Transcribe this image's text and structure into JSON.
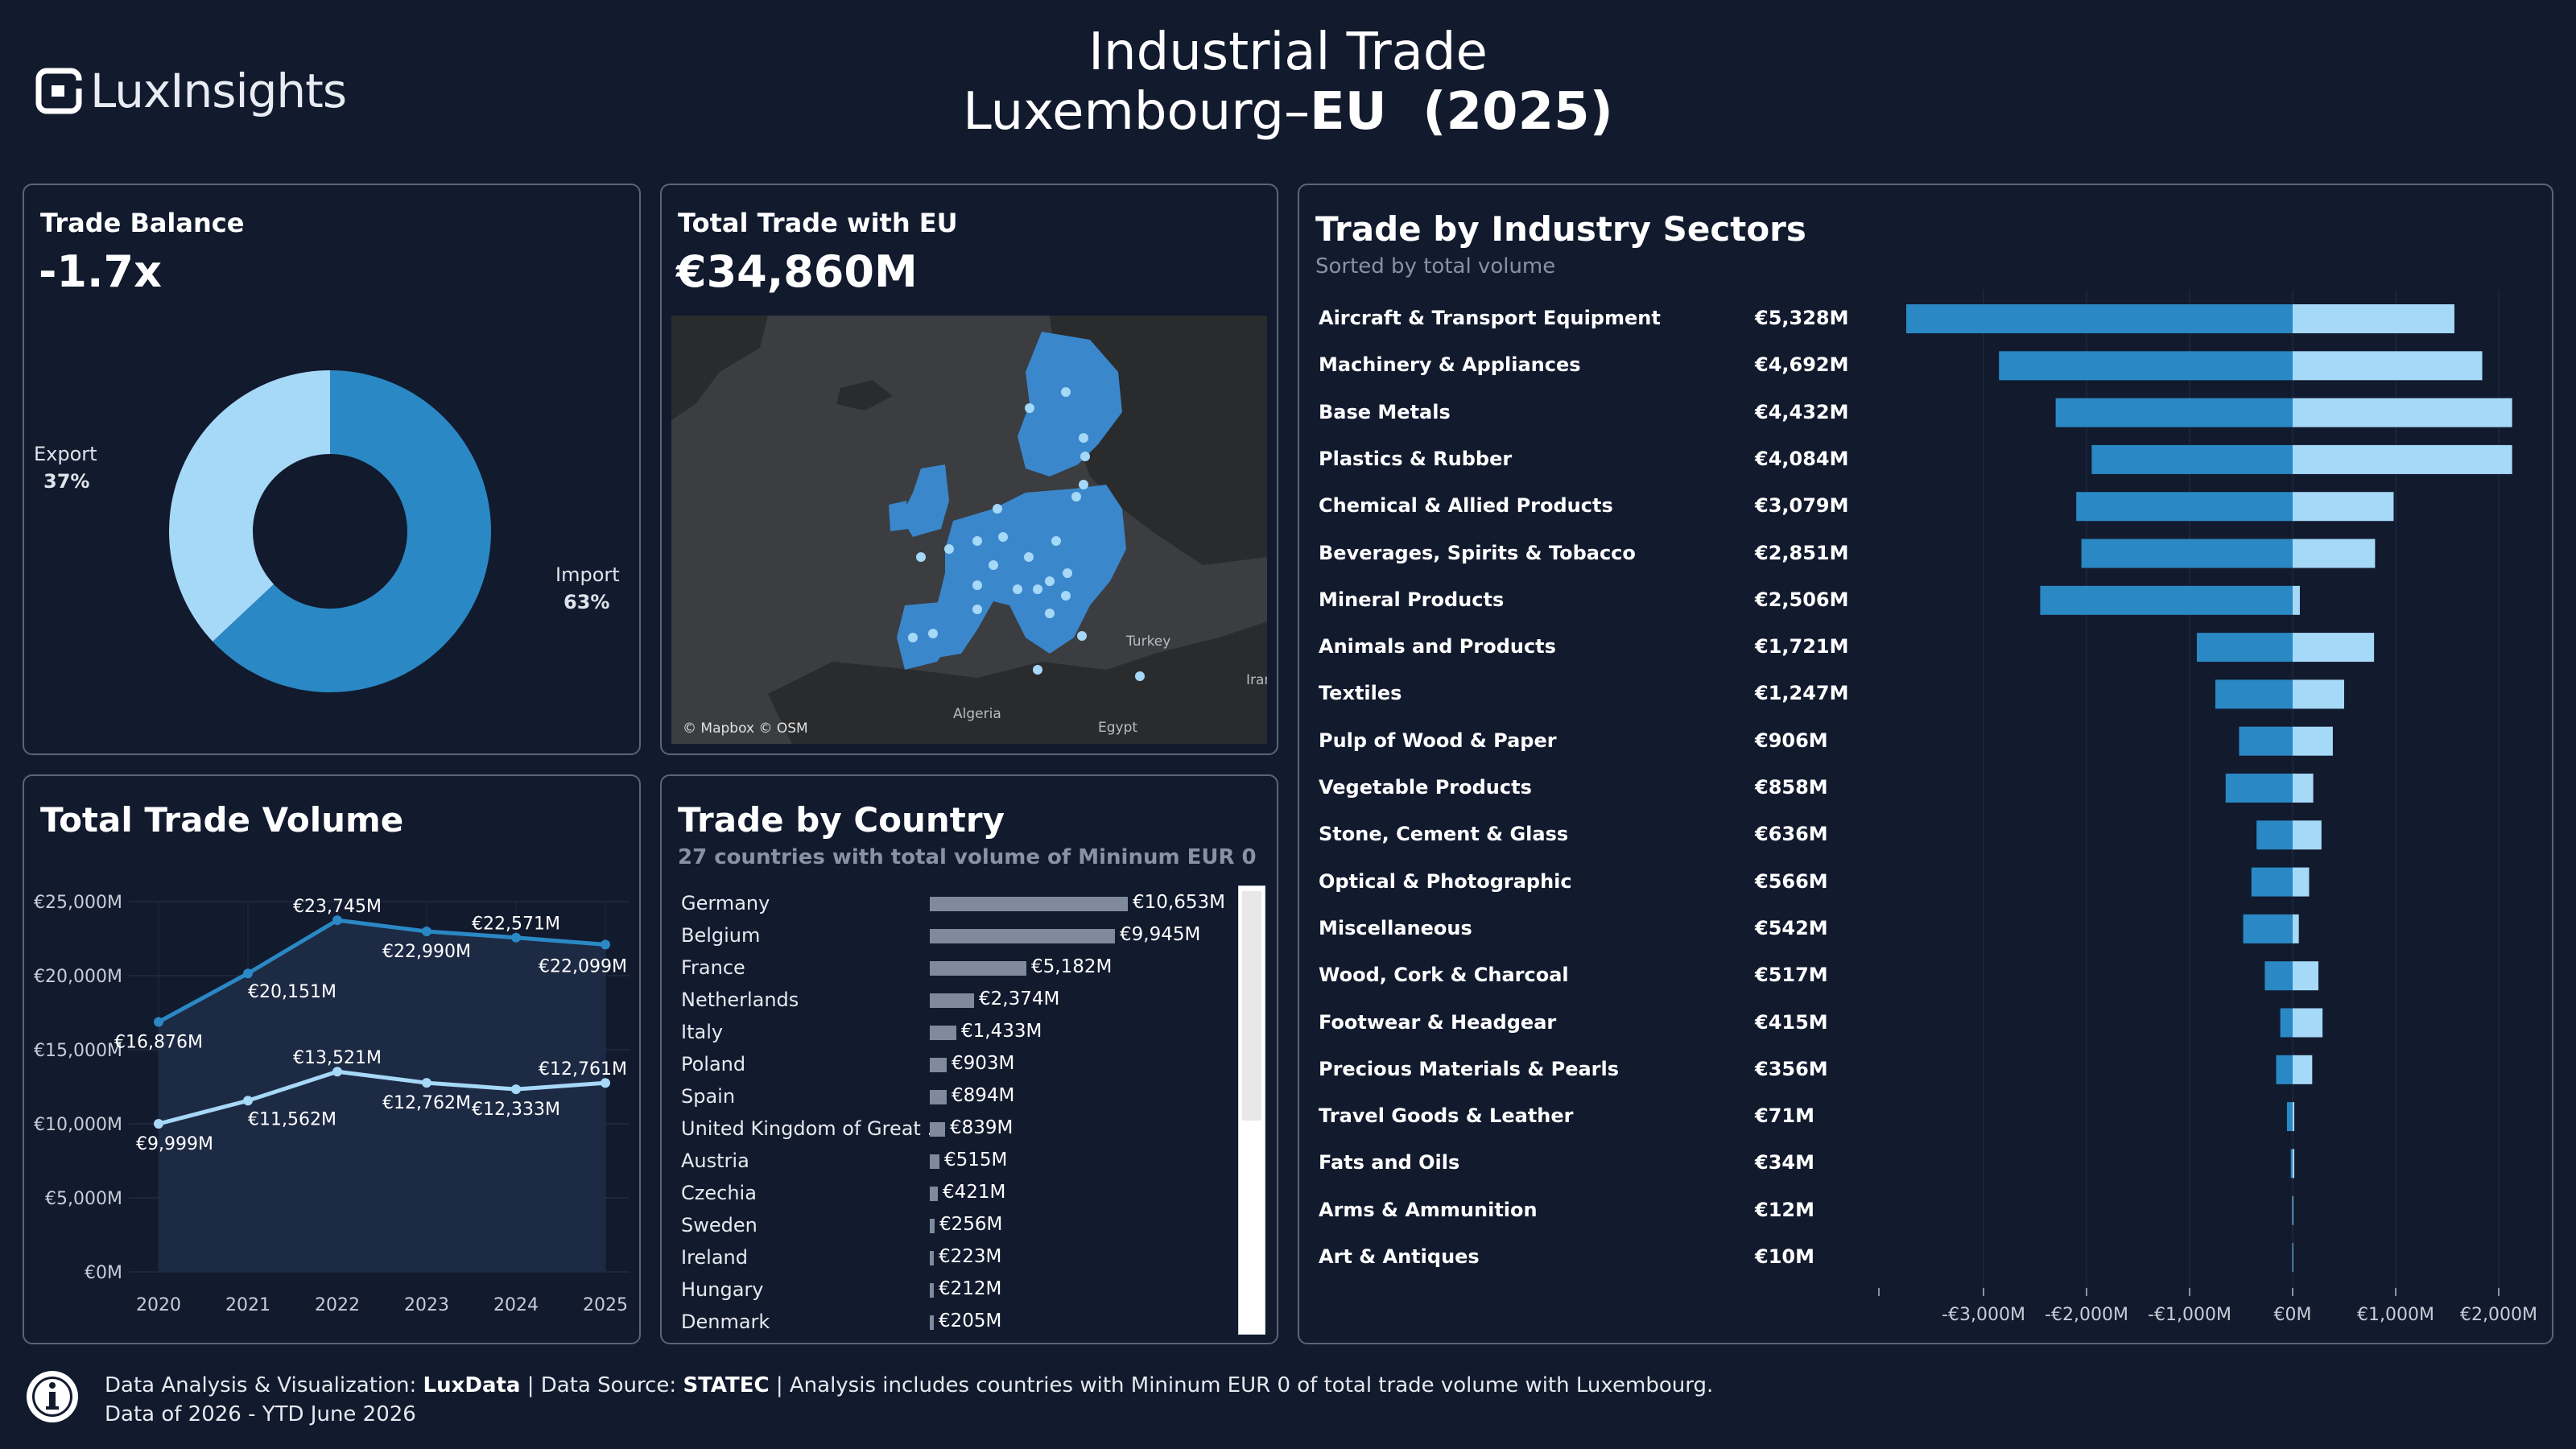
{
  "header": {
    "logo_text": "LuxInsights",
    "title_line1": "Industrial Trade",
    "title_line2_prefix": "Luxembourg–",
    "title_line2_bold": "EU  (2025)"
  },
  "trade_balance": {
    "title": "Trade Balance",
    "value": "-1.7x",
    "export_label": "Export",
    "export_pct": "37%",
    "import_label": "Import",
    "import_pct": "63%",
    "export_share": 0.37,
    "import_share": 0.63,
    "colors": {
      "export": "#a6d8f7",
      "import": "#2a88c4"
    }
  },
  "total_trade": {
    "title": "Total Trade with EU",
    "value": "€34,860M",
    "map_labels": {
      "turkey": "Turkey",
      "algeria": "Algeria",
      "egypt": "Egypt",
      "iran": "Iran"
    },
    "attribution": "© Mapbox © OSM"
  },
  "trade_volume": {
    "title": "Total Trade Volume",
    "y_ticks": [
      "€25,000M",
      "€20,000M",
      "€15,000M",
      "€10,000M",
      "€5,000M",
      "€0M"
    ],
    "x_ticks": [
      "2020",
      "2021",
      "2022",
      "2023",
      "2024",
      "2025"
    ],
    "upper_labels": [
      "€16,876M",
      "€20,151M",
      "€23,745M",
      "€22,990M",
      "€22,571M",
      "€22,099M"
    ],
    "lower_labels": [
      "€9,999M",
      "€11,562M",
      "€13,521M",
      "€12,762M",
      "€12,333M",
      "€12,761M"
    ]
  },
  "trade_by_country": {
    "title": "Trade by Country",
    "subtitle": "27 countries with total volume of Mininum EUR 0",
    "rows": [
      {
        "name": "Germany",
        "label": "€10,653M",
        "value": 10653
      },
      {
        "name": "Belgium",
        "label": "€9,945M",
        "value": 9945
      },
      {
        "name": "France",
        "label": "€5,182M",
        "value": 5182
      },
      {
        "name": "Netherlands",
        "label": "€2,374M",
        "value": 2374
      },
      {
        "name": "Italy",
        "label": "€1,433M",
        "value": 1433
      },
      {
        "name": "Poland",
        "label": "€903M",
        "value": 903
      },
      {
        "name": "Spain",
        "label": "€894M",
        "value": 894
      },
      {
        "name": "United Kingdom of Great ..",
        "label": "€839M",
        "value": 839
      },
      {
        "name": "Austria",
        "label": "€515M",
        "value": 515
      },
      {
        "name": "Czechia",
        "label": "€421M",
        "value": 421
      },
      {
        "name": "Sweden",
        "label": "€256M",
        "value": 256
      },
      {
        "name": "Ireland",
        "label": "€223M",
        "value": 223
      },
      {
        "name": "Hungary",
        "label": "€212M",
        "value": 212
      },
      {
        "name": "Denmark",
        "label": "€205M",
        "value": 205
      }
    ]
  },
  "sectors": {
    "title": "Trade by Industry Sectors",
    "subtitle": "Sorted by total volume",
    "x_ticks": [
      "-€3,000M",
      "-€2,000M",
      "-€1,000M",
      "€0M",
      "€1,000M",
      "€2,000M"
    ]
  },
  "chart_data": [
    {
      "type": "pie",
      "title": "Trade Balance",
      "categories": [
        "Export",
        "Import"
      ],
      "values": [
        37,
        63
      ]
    },
    {
      "type": "line",
      "title": "Total Trade Volume",
      "x": [
        2020,
        2021,
        2022,
        2023,
        2024,
        2025
      ],
      "series": [
        {
          "values": [
            16876,
            20151,
            23745,
            22990,
            22571,
            22099
          ]
        },
        {
          "values": [
            9999,
            11562,
            13521,
            12762,
            12333,
            12761
          ]
        }
      ],
      "ylim": [
        0,
        25000
      ],
      "grid": true
    },
    {
      "type": "bar",
      "title": "Trade by Country",
      "categories": [
        "Germany",
        "Belgium",
        "France",
        "Netherlands",
        "Italy",
        "Poland",
        "Spain",
        "United Kingdom of Great ..",
        "Austria",
        "Czechia",
        "Sweden",
        "Ireland",
        "Hungary",
        "Denmark"
      ],
      "values": [
        10653,
        9945,
        5182,
        2374,
        1433,
        903,
        894,
        839,
        515,
        421,
        256,
        223,
        212,
        205
      ]
    },
    {
      "type": "bar",
      "title": "Trade by Industry Sectors",
      "categories": [
        "Aircraft & Transport Equipment",
        "Machinery & Appliances",
        "Base Metals",
        "Plastics & Rubber",
        "Chemical & Allied Products",
        "Beverages, Spirits & Tobacco",
        "Mineral Products",
        "Animals and Products",
        "Textiles",
        "Pulp of Wood & Paper",
        "Vegetable Products",
        "Stone, Cement & Glass",
        "Optical & Photographic",
        "Miscellaneous",
        "Wood, Cork & Charcoal",
        "Footwear & Headgear",
        "Precious Materials & Pearls",
        "Travel Goods & Leather",
        "Fats and Oils",
        "Arms & Ammunition",
        "Art & Antiques"
      ],
      "totals": [
        "€5,328M",
        "€4,692M",
        "€4,432M",
        "€4,084M",
        "€3,079M",
        "€2,851M",
        "€2,506M",
        "€1,721M",
        "€1,247M",
        "€906M",
        "€858M",
        "€636M",
        "€566M",
        "€542M",
        "€517M",
        "€415M",
        "€356M",
        "€71M",
        "€34M",
        "€12M",
        "€10M"
      ],
      "series": [
        {
          "values": [
            -3750,
            -2850,
            -2300,
            -1950,
            -2100,
            -2050,
            -2450,
            -930,
            -750,
            -520,
            -650,
            -350,
            -400,
            -480,
            -270,
            -120,
            -160,
            -55,
            -18,
            -6,
            -5
          ]
        },
        {
          "values": [
            1570,
            1840,
            2130,
            2130,
            980,
            800,
            70,
            790,
            500,
            390,
            200,
            280,
            160,
            60,
            250,
            290,
            190,
            16,
            16,
            6,
            5
          ]
        }
      ],
      "xlim": [
        -4000,
        2200
      ],
      "grid": true
    }
  ]
}
